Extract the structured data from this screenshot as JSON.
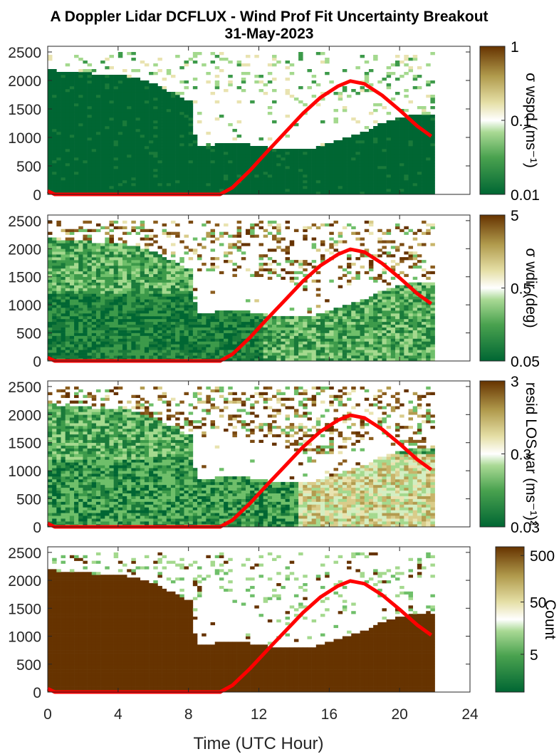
{
  "chart_data": {
    "type": "heatmap",
    "title": "A Doppler Lidar DCFLUX - Wind Prof Fit Uncertainty Breakout",
    "subtitle": "31-May-2023",
    "xlabel": "Time (UTC Hour)",
    "xlim": [
      0,
      24
    ],
    "xticks": [
      "0",
      "4",
      "8",
      "12",
      "16",
      "20",
      "24"
    ],
    "ylim": [
      0,
      2600
    ],
    "yticks": [
      "0",
      "500",
      "1000",
      "1500",
      "2000",
      "2500"
    ],
    "colors": {
      "dark_green": "#006633",
      "white": "#ffffff",
      "dark_brown": "#663300",
      "line_red": "#ff0000"
    },
    "panels": [
      {
        "colorbar_label": "σ wspd (ms⁻¹)",
        "colorbar_ticks": [
          "1",
          "0.1",
          "0.01"
        ],
        "scale": "log",
        "fill": "dark-green",
        "noise": 0.05
      },
      {
        "colorbar_label": "σ wdir (deg)",
        "colorbar_ticks": [
          "5",
          "0.5",
          "0.05"
        ],
        "scale": "log",
        "fill": "mixed-green",
        "noise": 0.35
      },
      {
        "colorbar_label": "resid LOS var (ms⁻¹)²",
        "colorbar_ticks": [
          "3",
          "0.3",
          "0.03"
        ],
        "scale": "log",
        "fill": "mixed-green-tan",
        "noise": 0.4
      },
      {
        "colorbar_label": "Count",
        "colorbar_ticks": [
          "500",
          "50",
          "5"
        ],
        "scale": "log",
        "fill": "dark-brown",
        "noise": 0.05
      }
    ],
    "series": [
      {
        "name": "",
        "color": "#ff0000",
        "x": [
          0,
          0.4,
          9.8,
          10.5,
          11.5,
          12.5,
          13.5,
          14.5,
          15.5,
          16.5,
          17.2,
          18,
          19,
          20,
          21,
          21.8
        ],
        "y": [
          60,
          0,
          0,
          120,
          420,
          760,
          1090,
          1420,
          1700,
          1900,
          1990,
          1940,
          1740,
          1480,
          1200,
          1020
        ]
      }
    ],
    "data_top_height": [
      [
        0,
        2200
      ],
      [
        1,
        2150
      ],
      [
        2,
        2150
      ],
      [
        3,
        2100
      ],
      [
        4,
        2100
      ],
      [
        5,
        2050
      ],
      [
        6,
        1950
      ],
      [
        7,
        1800
      ],
      [
        8,
        1650
      ],
      [
        9,
        1600
      ],
      [
        10,
        1550
      ],
      [
        11,
        1550
      ],
      [
        12,
        1500
      ],
      [
        13,
        1450
      ],
      [
        14,
        1350
      ],
      [
        15,
        1300
      ],
      [
        16,
        1250
      ],
      [
        17,
        1300
      ],
      [
        18,
        1350
      ],
      [
        19,
        1450
      ],
      [
        20,
        1450
      ],
      [
        21,
        1450
      ],
      [
        21.8,
        1400
      ]
    ],
    "gap_bottom_height": [
      [
        0,
        2200
      ],
      [
        8,
        1650
      ],
      [
        8.5,
        850
      ],
      [
        9,
        850
      ],
      [
        10,
        900
      ],
      [
        11,
        900
      ],
      [
        12,
        850
      ],
      [
        13,
        800
      ],
      [
        14,
        780
      ],
      [
        15,
        800
      ],
      [
        16,
        900
      ],
      [
        17,
        1000
      ],
      [
        18,
        1100
      ],
      [
        19,
        1250
      ],
      [
        20,
        1350
      ],
      [
        21,
        1400
      ],
      [
        21.8,
        1400
      ]
    ],
    "data_end_hour": 21.8
  }
}
